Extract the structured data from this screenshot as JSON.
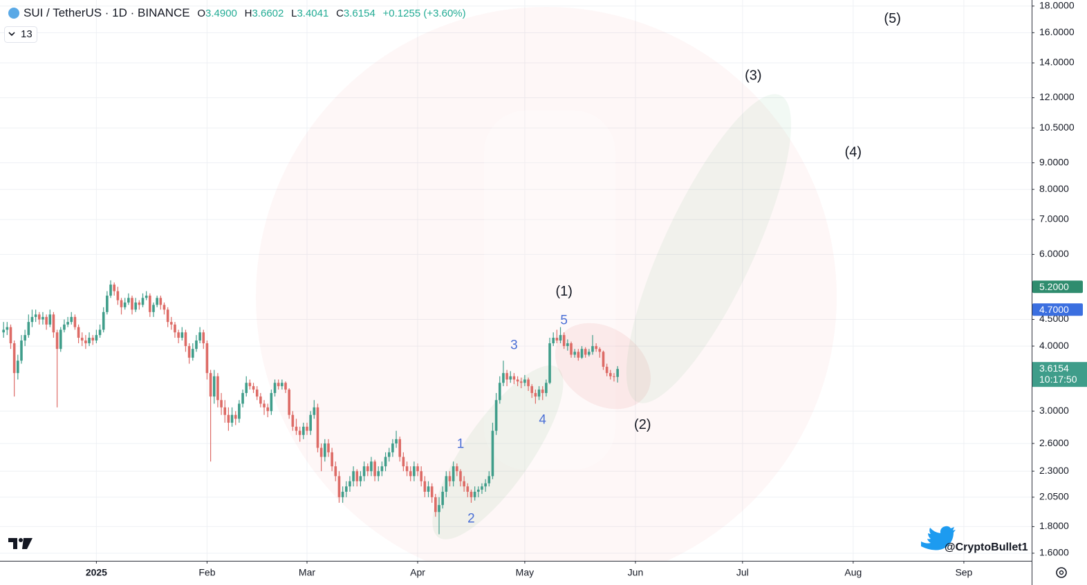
{
  "header": {
    "symbol": "SUI / TetherUS · 1D · BINANCE",
    "open_label": "O",
    "open": "3.4900",
    "high_label": "H",
    "high": "3.6602",
    "low_label": "L",
    "low": "3.4041",
    "close_label": "C",
    "close": "3.6154",
    "change": "+0.1255 (+3.60%)",
    "indicators": "13"
  },
  "watermark": "@CryptoBullet1",
  "chart_data": {
    "type": "candlestick",
    "log_scale": true,
    "grid": true,
    "up_color": "#3f9d8a",
    "down_color": "#dd6b66",
    "xlim": [
      -1,
      288
    ],
    "ylim": [
      1.547,
      18.49
    ],
    "xticks": [
      {
        "value": 26,
        "label": "2025"
      },
      {
        "value": 57,
        "label": "Feb"
      },
      {
        "value": 85,
        "label": "Mar"
      },
      {
        "value": 116,
        "label": "Apr"
      },
      {
        "value": 146,
        "label": "May"
      },
      {
        "value": 177,
        "label": "Jun"
      },
      {
        "value": 207,
        "label": "Jul"
      },
      {
        "value": 238,
        "label": "Aug"
      },
      {
        "value": 269,
        "label": "Sep"
      }
    ],
    "yticks": [
      {
        "value": 1.6,
        "label": "1.6000"
      },
      {
        "value": 1.8,
        "label": "1.8000"
      },
      {
        "value": 2.05,
        "label": "2.0500"
      },
      {
        "value": 2.3,
        "label": "2.3000"
      },
      {
        "value": 2.6,
        "label": "2.6000"
      },
      {
        "value": 3,
        "label": "3.0000"
      },
      {
        "value": 4,
        "label": "4.0000"
      },
      {
        "value": 4.5,
        "label": "4.5000"
      },
      {
        "value": 6,
        "label": "6.0000"
      },
      {
        "value": 7,
        "label": "7.0000"
      },
      {
        "value": 8,
        "label": "8.0000"
      },
      {
        "value": 9,
        "label": "9.0000"
      },
      {
        "value": 10.5,
        "label": "10.5000"
      },
      {
        "value": 12,
        "label": "12.0000"
      },
      {
        "value": 14,
        "label": "14.0000"
      },
      {
        "value": 16,
        "label": "16.0000"
      },
      {
        "value": 18,
        "label": "18.0000"
      }
    ],
    "price_markers": [
      {
        "value": 5.2,
        "label": "5.2000",
        "color": "#2f8c6e"
      },
      {
        "value": 4.7,
        "label": "4.7000",
        "color": "#3b6fe0"
      }
    ],
    "last_price": {
      "value": 3.6154,
      "label": "3.6154",
      "countdown": "10:17:50",
      "color": "#3f9d8a"
    },
    "annotations": [
      {
        "text": "(1)",
        "x": 157,
        "y": 5.08,
        "style": "wave"
      },
      {
        "text": "(2)",
        "x": 179,
        "y": 2.82,
        "style": "wave"
      },
      {
        "text": "(3)",
        "x": 210,
        "y": 13.2,
        "style": "wave"
      },
      {
        "text": "(4)",
        "x": 238,
        "y": 9.4,
        "style": "wave"
      },
      {
        "text": "(5)",
        "x": 249,
        "y": 17.0,
        "style": "wave"
      },
      {
        "text": "1",
        "x": 128,
        "y": 2.59,
        "style": "sub"
      },
      {
        "text": "2",
        "x": 131,
        "y": 1.86,
        "style": "sub"
      },
      {
        "text": "3",
        "x": 143,
        "y": 4.01,
        "style": "sub"
      },
      {
        "text": "4",
        "x": 151,
        "y": 2.88,
        "style": "sub"
      },
      {
        "text": "5",
        "x": 157,
        "y": 4.47,
        "style": "sub"
      }
    ],
    "ohlc": [
      [
        4.25,
        4.45,
        4.15,
        4.3
      ],
      [
        4.3,
        4.45,
        4.2,
        4.35
      ],
      [
        4.35,
        4.4,
        3.95,
        4.05
      ],
      [
        4.05,
        4.1,
        3.2,
        3.55
      ],
      [
        3.55,
        3.85,
        3.45,
        3.75
      ],
      [
        3.75,
        4.2,
        3.7,
        4.1
      ],
      [
        4.1,
        4.3,
        4.0,
        4.2
      ],
      [
        4.2,
        4.6,
        4.15,
        4.45
      ],
      [
        4.45,
        4.7,
        4.35,
        4.55
      ],
      [
        4.55,
        4.7,
        4.45,
        4.6
      ],
      [
        4.6,
        4.65,
        4.4,
        4.5
      ],
      [
        4.5,
        4.65,
        4.4,
        4.55
      ],
      [
        4.55,
        4.6,
        4.3,
        4.4
      ],
      [
        4.4,
        4.7,
        4.35,
        4.6
      ],
      [
        4.6,
        4.65,
        4.15,
        4.25
      ],
      [
        4.25,
        4.3,
        3.05,
        3.95
      ],
      [
        3.95,
        4.35,
        3.9,
        4.3
      ],
      [
        4.3,
        4.5,
        4.25,
        4.4
      ],
      [
        4.4,
        4.55,
        4.35,
        4.45
      ],
      [
        4.45,
        4.65,
        4.4,
        4.55
      ],
      [
        4.55,
        4.6,
        4.3,
        4.35
      ],
      [
        4.35,
        4.4,
        4.05,
        4.15
      ],
      [
        4.15,
        4.25,
        4.0,
        4.1
      ],
      [
        4.1,
        4.2,
        3.95,
        4.05
      ],
      [
        4.05,
        4.25,
        4.0,
        4.15
      ],
      [
        4.15,
        4.2,
        4.02,
        4.1
      ],
      [
        4.1,
        4.3,
        4.05,
        4.2
      ],
      [
        4.2,
        4.4,
        4.15,
        4.3
      ],
      [
        4.3,
        4.75,
        4.25,
        4.65
      ],
      [
        4.65,
        5.1,
        4.6,
        5.0
      ],
      [
        5.0,
        5.35,
        4.95,
        5.25
      ],
      [
        5.25,
        5.3,
        5.0,
        5.1
      ],
      [
        5.1,
        5.2,
        4.8,
        4.9
      ],
      [
        4.9,
        4.95,
        4.6,
        4.75
      ],
      [
        4.75,
        4.95,
        4.7,
        4.85
      ],
      [
        4.85,
        5.05,
        4.8,
        4.95
      ],
      [
        4.95,
        5.0,
        4.6,
        4.7
      ],
      [
        4.7,
        4.95,
        4.65,
        4.85
      ],
      [
        4.85,
        4.9,
        4.7,
        4.8
      ],
      [
        4.8,
        5.05,
        4.75,
        4.95
      ],
      [
        4.95,
        5.1,
        4.9,
        5.0
      ],
      [
        5.0,
        5.05,
        4.55,
        4.65
      ],
      [
        4.65,
        4.85,
        4.55,
        4.8
      ],
      [
        4.8,
        5.0,
        4.75,
        4.95
      ],
      [
        4.95,
        5.0,
        4.7,
        4.8
      ],
      [
        4.8,
        4.85,
        4.6,
        4.7
      ],
      [
        4.7,
        4.75,
        4.35,
        4.45
      ],
      [
        4.45,
        4.55,
        4.3,
        4.4
      ],
      [
        4.4,
        4.45,
        4.15,
        4.25
      ],
      [
        4.25,
        4.3,
        4.05,
        4.15
      ],
      [
        4.15,
        4.35,
        4.1,
        4.25
      ],
      [
        4.25,
        4.3,
        3.9,
        4.0
      ],
      [
        4.0,
        4.05,
        3.7,
        3.8
      ],
      [
        3.8,
        4.05,
        3.75,
        3.95
      ],
      [
        3.95,
        4.2,
        3.9,
        4.1
      ],
      [
        4.1,
        4.35,
        4.05,
        4.25
      ],
      [
        4.25,
        4.3,
        3.95,
        4.05
      ],
      [
        4.05,
        4.1,
        3.45,
        3.55
      ],
      [
        3.55,
        3.6,
        2.4,
        3.2
      ],
      [
        3.2,
        3.6,
        3.1,
        3.5
      ],
      [
        3.5,
        3.55,
        3.05,
        3.15
      ],
      [
        3.15,
        3.25,
        2.95,
        3.05
      ],
      [
        3.05,
        3.15,
        2.85,
        2.95
      ],
      [
        2.95,
        3.05,
        2.75,
        2.85
      ],
      [
        2.85,
        3.05,
        2.8,
        2.95
      ],
      [
        2.95,
        3.0,
        2.82,
        2.9
      ],
      [
        2.9,
        3.15,
        2.85,
        3.1
      ],
      [
        3.1,
        3.3,
        3.05,
        3.25
      ],
      [
        3.25,
        3.5,
        3.2,
        3.4
      ],
      [
        3.4,
        3.45,
        3.3,
        3.35
      ],
      [
        3.35,
        3.4,
        3.25,
        3.3
      ],
      [
        3.3,
        3.35,
        3.15,
        3.2
      ],
      [
        3.2,
        3.25,
        3.05,
        3.1
      ],
      [
        3.1,
        3.15,
        2.95,
        3.05
      ],
      [
        3.05,
        3.1,
        2.92,
        3.0
      ],
      [
        3.0,
        3.3,
        2.95,
        3.25
      ],
      [
        3.25,
        3.45,
        3.2,
        3.4
      ],
      [
        3.4,
        3.45,
        3.3,
        3.35
      ],
      [
        3.35,
        3.45,
        3.3,
        3.4
      ],
      [
        3.4,
        3.42,
        3.25,
        3.3
      ],
      [
        3.3,
        3.32,
        2.9,
        2.95
      ],
      [
        2.95,
        3.0,
        2.75,
        2.8
      ],
      [
        2.8,
        2.9,
        2.7,
        2.75
      ],
      [
        2.75,
        2.8,
        2.62,
        2.7
      ],
      [
        2.7,
        2.85,
        2.65,
        2.8
      ],
      [
        2.8,
        2.85,
        2.7,
        2.75
      ],
      [
        2.75,
        3.0,
        2.7,
        2.95
      ],
      [
        2.95,
        3.15,
        2.9,
        3.05
      ],
      [
        3.05,
        3.1,
        2.5,
        2.55
      ],
      [
        2.55,
        2.6,
        2.3,
        2.45
      ],
      [
        2.45,
        2.65,
        2.4,
        2.6
      ],
      [
        2.6,
        2.65,
        2.45,
        2.5
      ],
      [
        2.5,
        2.55,
        2.3,
        2.35
      ],
      [
        2.35,
        2.4,
        2.2,
        2.25
      ],
      [
        2.25,
        2.3,
        2.0,
        2.05
      ],
      [
        2.05,
        2.15,
        2.0,
        2.1
      ],
      [
        2.1,
        2.2,
        2.05,
        2.15
      ],
      [
        2.15,
        2.25,
        2.1,
        2.2
      ],
      [
        2.2,
        2.35,
        2.15,
        2.3
      ],
      [
        2.3,
        2.32,
        2.15,
        2.2
      ],
      [
        2.2,
        2.3,
        2.15,
        2.25
      ],
      [
        2.25,
        2.4,
        2.2,
        2.35
      ],
      [
        2.35,
        2.38,
        2.25,
        2.3
      ],
      [
        2.3,
        2.45,
        2.25,
        2.4
      ],
      [
        2.4,
        2.42,
        2.2,
        2.25
      ],
      [
        2.25,
        2.35,
        2.2,
        2.3
      ],
      [
        2.3,
        2.4,
        2.25,
        2.35
      ],
      [
        2.35,
        2.5,
        2.3,
        2.45
      ],
      [
        2.45,
        2.55,
        2.4,
        2.5
      ],
      [
        2.5,
        2.65,
        2.45,
        2.6
      ],
      [
        2.6,
        2.75,
        2.55,
        2.65
      ],
      [
        2.65,
        2.68,
        2.4,
        2.45
      ],
      [
        2.45,
        2.5,
        2.3,
        2.35
      ],
      [
        2.35,
        2.4,
        2.25,
        2.3
      ],
      [
        2.3,
        2.35,
        2.2,
        2.25
      ],
      [
        2.25,
        2.4,
        2.2,
        2.35
      ],
      [
        2.35,
        2.38,
        2.25,
        2.3
      ],
      [
        2.3,
        2.35,
        2.15,
        2.2
      ],
      [
        2.2,
        2.25,
        2.05,
        2.1
      ],
      [
        2.1,
        2.2,
        2.05,
        2.15
      ],
      [
        2.15,
        2.18,
        2.0,
        2.05
      ],
      [
        2.05,
        2.08,
        1.88,
        1.92
      ],
      [
        1.92,
        2.05,
        1.74,
        1.98
      ],
      [
        1.98,
        2.15,
        1.95,
        2.1
      ],
      [
        2.1,
        2.3,
        2.05,
        2.25
      ],
      [
        2.25,
        2.3,
        2.15,
        2.2
      ],
      [
        2.2,
        2.4,
        2.15,
        2.35
      ],
      [
        2.35,
        2.38,
        2.25,
        2.3
      ],
      [
        2.3,
        2.32,
        2.15,
        2.2
      ],
      [
        2.2,
        2.25,
        2.1,
        2.15
      ],
      [
        2.15,
        2.18,
        2.05,
        2.1
      ],
      [
        2.1,
        2.12,
        2.0,
        2.05
      ],
      [
        2.05,
        2.15,
        2.02,
        2.1
      ],
      [
        2.1,
        2.15,
        2.05,
        2.12
      ],
      [
        2.12,
        2.18,
        2.08,
        2.15
      ],
      [
        2.15,
        2.22,
        2.1,
        2.18
      ],
      [
        2.18,
        2.3,
        2.15,
        2.25
      ],
      [
        2.25,
        2.85,
        2.22,
        2.75
      ],
      [
        2.75,
        3.25,
        2.7,
        3.15
      ],
      [
        3.15,
        3.5,
        3.1,
        3.4
      ],
      [
        3.4,
        3.75,
        3.35,
        3.55
      ],
      [
        3.55,
        3.6,
        3.35,
        3.45
      ],
      [
        3.45,
        3.58,
        3.4,
        3.5
      ],
      [
        3.5,
        3.55,
        3.38,
        3.45
      ],
      [
        3.45,
        3.5,
        3.35,
        3.42
      ],
      [
        3.42,
        3.48,
        3.32,
        3.4
      ],
      [
        3.4,
        3.52,
        3.35,
        3.45
      ],
      [
        3.45,
        3.48,
        3.28,
        3.35
      ],
      [
        3.35,
        3.38,
        3.18,
        3.25
      ],
      [
        3.25,
        3.3,
        3.1,
        3.2
      ],
      [
        3.2,
        3.35,
        3.15,
        3.3
      ],
      [
        3.3,
        3.35,
        3.15,
        3.25
      ],
      [
        3.25,
        3.45,
        3.2,
        3.4
      ],
      [
        3.4,
        4.15,
        3.38,
        4.05
      ],
      [
        4.05,
        4.25,
        4.0,
        4.15
      ],
      [
        4.15,
        4.3,
        4.05,
        4.1
      ],
      [
        4.1,
        4.35,
        4.05,
        4.2
      ],
      [
        4.2,
        4.25,
        3.95,
        4.0
      ],
      [
        4.0,
        4.12,
        3.92,
        4.05
      ],
      [
        4.05,
        4.08,
        3.8,
        3.85
      ],
      [
        3.85,
        3.95,
        3.8,
        3.9
      ],
      [
        3.9,
        3.95,
        3.75,
        3.8
      ],
      [
        3.8,
        4.0,
        3.78,
        3.95
      ],
      [
        3.95,
        3.98,
        3.8,
        3.85
      ],
      [
        3.85,
        3.95,
        3.82,
        3.9
      ],
      [
        3.9,
        4.2,
        3.85,
        4.0
      ],
      [
        4.0,
        4.05,
        3.9,
        3.95
      ],
      [
        3.95,
        3.98,
        3.8,
        3.9
      ],
      [
        3.9,
        3.92,
        3.6,
        3.65
      ],
      [
        3.65,
        3.7,
        3.5,
        3.55
      ],
      [
        3.55,
        3.6,
        3.45,
        3.5
      ],
      [
        3.5,
        3.55,
        3.42,
        3.49
      ],
      [
        3.49,
        3.6602,
        3.4041,
        3.6154
      ]
    ]
  }
}
